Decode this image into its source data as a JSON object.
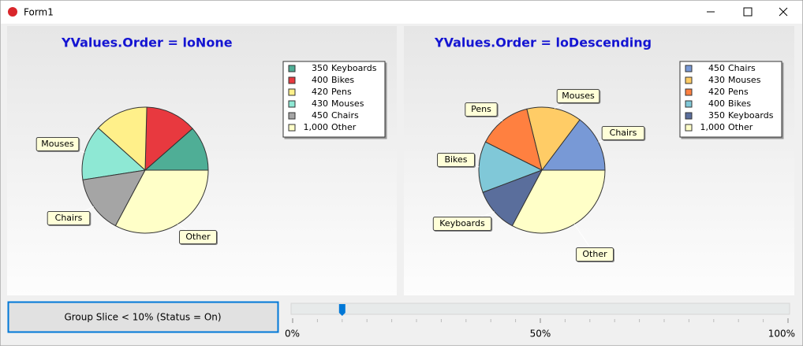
{
  "window": {
    "title": "Form1"
  },
  "chart_data": [
    {
      "type": "pie",
      "title": "YValues.Order = loNone",
      "categories": [
        "Keyboards",
        "Bikes",
        "Pens",
        "Mouses",
        "Chairs",
        "Other"
      ],
      "values": [
        350,
        400,
        420,
        430,
        450,
        1000
      ],
      "value_labels": [
        "350",
        "400",
        "420",
        "430",
        "450",
        "1,000"
      ],
      "colors": [
        "#4fae96",
        "#e8393f",
        "#fff08a",
        "#8ee8d4",
        "#a5a5a5",
        "#ffffc8"
      ],
      "slice_labels": [
        null,
        null,
        null,
        "Mouses",
        "Chairs",
        "Other"
      ]
    },
    {
      "type": "pie",
      "title": "YValues.Order = loDescending",
      "categories": [
        "Chairs",
        "Mouses",
        "Pens",
        "Bikes",
        "Keyboards",
        "Other"
      ],
      "values": [
        450,
        430,
        420,
        400,
        350,
        1000
      ],
      "value_labels": [
        "450",
        "430",
        "420",
        "400",
        "350",
        "1,000"
      ],
      "colors": [
        "#7899d6",
        "#ffcc66",
        "#ff8040",
        "#80c8d8",
        "#5a6e9c",
        "#ffffc8"
      ],
      "slice_labels": [
        "Chairs",
        "Mouses",
        "Pens",
        "Bikes",
        "Keyboards",
        "Other"
      ]
    }
  ],
  "controls": {
    "button": "Group Slice < 10% (Status = On)",
    "slider": {
      "min": 0,
      "max": 100,
      "value": 10,
      "ticks": [
        {
          "value": 0,
          "label": "0%"
        },
        {
          "value": 50,
          "label": "50%"
        },
        {
          "value": 100,
          "label": "100%"
        }
      ]
    }
  }
}
